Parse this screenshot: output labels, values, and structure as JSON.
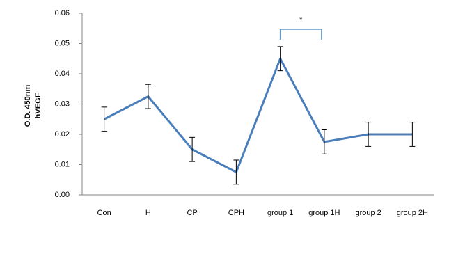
{
  "chart_data": {
    "type": "line",
    "y_label_lines": [
      "O.D. 450nm",
      "hVEGF"
    ],
    "annotation": "*",
    "categories": [
      "Con",
      "H",
      "CP",
      "CPH",
      "group 1",
      "group 1H",
      "group 2",
      "group 2H"
    ],
    "values": [
      0.025,
      0.0325,
      0.015,
      0.0075,
      0.045,
      0.0175,
      0.02,
      0.02
    ],
    "errors": [
      0.004,
      0.004,
      0.004,
      0.004,
      0.004,
      0.004,
      0.004,
      0.004
    ],
    "color": "#4a7ebb",
    "ylim": [
      0,
      0.06
    ],
    "yticks": [
      {
        "value": 0,
        "label": "0.00"
      },
      0.01,
      0.02,
      0.03,
      0.04,
      0.05,
      0.06
    ],
    "grid": false
  }
}
